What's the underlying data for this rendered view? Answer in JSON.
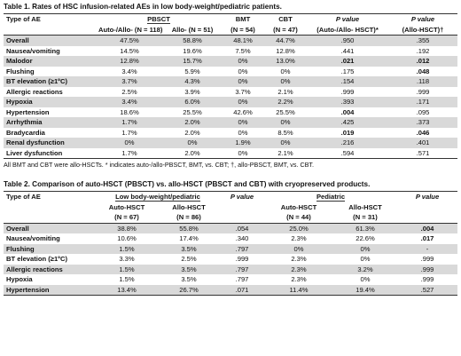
{
  "table1": {
    "caption": "Table 1. Rates of HSC infusion-related AEs in low body-weight/pediatric patients.",
    "headers": {
      "type": "Type of AE",
      "pbsct": "PBSCT",
      "bmt": "BMT",
      "cbt": "CBT",
      "pvalue": "P value",
      "auto": "Auto-/Allo- (N = 118)",
      "allo": "Allo- (N = 51)",
      "bmt_n": "(N = 54)",
      "cbt_n": "(N = 47)",
      "p1": "(Auto-/Allo- HSCT)*",
      "p2": "(Allo-HSCT)†"
    },
    "rows": [
      {
        "ae": "Overall",
        "auto": "47.5%",
        "allo": "58.8%",
        "bmt": "48.1%",
        "cbt": "44.7%",
        "p1": ".950",
        "p2": ".355"
      },
      {
        "ae": "Nausea/vomiting",
        "auto": "14.5%",
        "allo": "19.6%",
        "bmt": "7.5%",
        "cbt": "12.8%",
        "p1": ".441",
        "p2": ".192"
      },
      {
        "ae": "Malodor",
        "auto": "12.8%",
        "allo": "15.7%",
        "bmt": "0%",
        "cbt": "13.0%",
        "p1": ".021",
        "p2": ".012"
      },
      {
        "ae": "Flushing",
        "auto": "3.4%",
        "allo": "5.9%",
        "bmt": "0%",
        "cbt": "0%",
        "p1": ".175",
        "p2": ".048"
      },
      {
        "ae": "BT elevation (≥1ºC)",
        "auto": "3.7%",
        "allo": "4.3%",
        "bmt": "0%",
        "cbt": "0%",
        "p1": ".154",
        "p2": ".118"
      },
      {
        "ae": "Allergic reactions",
        "auto": "2.5%",
        "allo": "3.9%",
        "bmt": "3.7%",
        "cbt": "2.1%",
        "p1": ".999",
        "p2": ".999"
      },
      {
        "ae": "Hypoxia",
        "auto": "3.4%",
        "allo": "6.0%",
        "bmt": "0%",
        "cbt": "2.2%",
        "p1": ".393",
        "p2": ".171"
      },
      {
        "ae": "Hypertension",
        "auto": "18.6%",
        "allo": "25.5%",
        "bmt": "42.6%",
        "cbt": "25.5%",
        "p1": ".004",
        "p2": ".095"
      },
      {
        "ae": "Arrhythmia",
        "auto": "1.7%",
        "allo": "2.0%",
        "bmt": "0%",
        "cbt": "0%",
        "p1": ".425",
        "p2": ".373"
      },
      {
        "ae": "Bradycardia",
        "auto": "1.7%",
        "allo": "2.0%",
        "bmt": "0%",
        "cbt": "8.5%",
        "p1": ".019",
        "p2": ".046"
      },
      {
        "ae": "Renal dysfunction",
        "auto": "0%",
        "allo": "0%",
        "bmt": "1.9%",
        "cbt": "0%",
        "p1": ".216",
        "p2": ".401"
      },
      {
        "ae": "Liver dysfunction",
        "auto": "1.7%",
        "allo": "2.0%",
        "bmt": "0%",
        "cbt": "2.1%",
        "p1": ".594",
        "p2": ".571"
      }
    ],
    "note": "All BMT and CBT were allo-HSCTs. * indicates auto-/allo-PBSCT, BMT, vs. CBT; †, allo-PBSCT, BMT, vs. CBT."
  },
  "table2": {
    "caption": "Table 2. Comparison of auto-HSCT (PBSCT) vs. allo-HSCT (PBSCT and CBT) with cryopreserved products.",
    "headers": {
      "type": "Type of AE",
      "low": "Low body-weight/pediatric",
      "pvalue": "P value",
      "pediatric": "Pediatric",
      "pvalue2": "P value",
      "auto1": "Auto-HSCT",
      "allo1": "Allo-HSCT",
      "auto2": "Auto-HSCT",
      "allo2": "Allo-HSCT",
      "auto1_n": "(N = 67)",
      "allo1_n": "(N = 86)",
      "auto2_n": "(N = 44)",
      "allo2_n": "(N = 31)"
    },
    "rows": [
      {
        "ae": "Overall",
        "a1": "38.8%",
        "b1": "55.8%",
        "p1": ".054",
        "a2": "25.0%",
        "b2": "61.3%",
        "p2": ".004"
      },
      {
        "ae": "Nausea/vomiting",
        "a1": "10.6%",
        "b1": "17.4%",
        "p1": ".340",
        "a2": "2.3%",
        "b2": "22.6%",
        "p2": ".017"
      },
      {
        "ae": "Flushing",
        "a1": "1.5%",
        "b1": "3.5%",
        "p1": ".797",
        "a2": "0%",
        "b2": "0%",
        "p2": "-"
      },
      {
        "ae": "BT elevation (≥1ºC)",
        "a1": "3.3%",
        "b1": "2.5%",
        "p1": ".999",
        "a2": "2.3%",
        "b2": "0%",
        "p2": ".999"
      },
      {
        "ae": "Allergic reactions",
        "a1": "1.5%",
        "b1": "3.5%",
        "p1": ".797",
        "a2": "2.3%",
        "b2": "3.2%",
        "p2": ".999"
      },
      {
        "ae": "Hypoxia",
        "a1": "1.5%",
        "b1": "3.5%",
        "p1": ".797",
        "a2": "2.3%",
        "b2": "0%",
        "p2": ".999"
      },
      {
        "ae": "Hypertension",
        "a1": "13.4%",
        "b1": "26.7%",
        "p1": ".071",
        "a2": "11.4%",
        "b2": "19.4%",
        "p2": ".527"
      }
    ]
  }
}
